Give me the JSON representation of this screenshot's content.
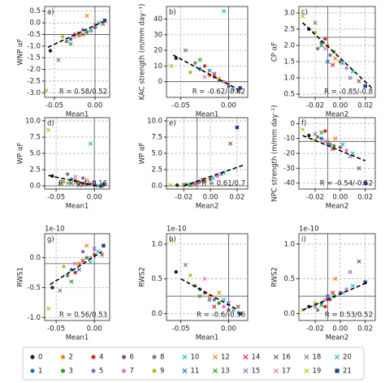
{
  "chart_data": [
    {
      "type": "scatter",
      "label": "a)",
      "xlabel": "Mean1",
      "ylabel": "WNP αF",
      "annotation": "R = 0.58/0.52",
      "grid": true,
      "xlim": [
        -0.062,
        0.018
      ],
      "xticks": [
        -0.05,
        {
          "value": 0,
          "label": "0.00"
        }
      ],
      "ylim": [
        -3.2,
        0.7
      ],
      "yticks": [
        0.5,
        {
          "value": 0,
          "label": "0.0"
        },
        -0.5,
        {
          "value": -1,
          "label": "-1.0"
        },
        -1.5,
        {
          "value": -2,
          "label": "-2.0"
        },
        -2.5,
        {
          "value": -3,
          "label": "-3.0"
        }
      ],
      "ref_x": 0,
      "ref_y": -0.5,
      "fit": {
        "x": [
          -0.058,
          0.01
        ],
        "y": [
          -1.05,
          0.05
        ]
      },
      "x": [
        -0.055,
        -0.03,
        -0.02,
        -0.01,
        -0.025,
        -0.015,
        0.0,
        -0.005,
        -0.035,
        -0.04,
        0.005,
        -0.02,
        -0.01,
        -0.03,
        -0.015,
        0.0,
        0.01,
        -0.025,
        -0.045,
        -0.06,
        -0.005,
        0.012
      ],
      "y": [
        -1.2,
        -0.7,
        -0.55,
        -0.4,
        -0.5,
        -0.3,
        -0.2,
        -0.35,
        -0.8,
        -0.6,
        0.0,
        -0.45,
        0.3,
        -0.9,
        -0.5,
        -0.1,
        -0.05,
        -0.6,
        -1.6,
        -2.9,
        -0.3,
        0.1
      ]
    },
    {
      "type": "scatter",
      "label": "b)",
      "xlabel": "Mean1",
      "ylabel": "KAC strength (m/mm day⁻¹)",
      "annotation": "R = -0.62/-0.62",
      "grid": true,
      "xlim": [
        -0.065,
        0.02
      ],
      "xticks": [
        -0.05,
        {
          "value": 0,
          "label": "0.00"
        }
      ],
      "ylim": [
        -10,
        48
      ],
      "yticks": [
        0,
        10,
        20,
        30,
        40
      ],
      "ref_x": 0,
      "ref_y": 0,
      "fit": {
        "x": [
          -0.058,
          0.01
        ],
        "y": [
          17,
          -5
        ]
      },
      "x": [
        -0.055,
        -0.03,
        -0.02,
        -0.01,
        -0.025,
        -0.015,
        0.0,
        -0.005,
        -0.035,
        -0.04,
        0.005,
        -0.02,
        -0.01,
        -0.03,
        -0.015,
        0.0,
        0.01,
        -0.025,
        -0.045,
        -0.06,
        -0.005,
        0.012
      ],
      "y": [
        15,
        8,
        4,
        1,
        10,
        3,
        -3,
        0,
        12,
        6,
        -5,
        7,
        2,
        14,
        5,
        -2,
        -6,
        3,
        20,
        10,
        45,
        -4
      ]
    },
    {
      "type": "scatter",
      "label": "c)",
      "xlabel": "Mean2",
      "ylabel": "CP αF",
      "annotation": "R = -0.85/-0.8",
      "grid": true,
      "xlim": [
        -0.033,
        0.028
      ],
      "xticks": [
        -0.02,
        {
          "value": 0,
          "label": "0.00"
        },
        0.02
      ],
      "ylim": [
        0.4,
        3.2
      ],
      "yticks": [
        0.5,
        {
          "value": 1,
          "label": "1.0"
        },
        1.5,
        {
          "value": 2,
          "label": "2.0"
        },
        2.5,
        {
          "value": 3,
          "label": "3.0"
        }
      ],
      "ref_x": -0.01,
      "ref_y": 2.25,
      "fit": {
        "x": [
          -0.03,
          0.025
        ],
        "y": [
          2.7,
          0.7
        ]
      },
      "x": [
        -0.025,
        -0.015,
        -0.01,
        -0.005,
        -0.012,
        -0.008,
        0.0,
        0.005,
        -0.018,
        -0.02,
        0.01,
        -0.01,
        -0.004,
        -0.015,
        -0.006,
        0.008,
        0.015,
        -0.012,
        -0.02,
        -0.03,
        0.002,
        0.02
      ],
      "y": [
        2.5,
        2.1,
        2.0,
        1.8,
        2.2,
        1.7,
        1.5,
        1.3,
        1.9,
        2.4,
        1.2,
        1.5,
        1.6,
        2.0,
        1.4,
        1.0,
        0.9,
        1.9,
        2.7,
        2.9,
        1.45,
        0.75
      ]
    },
    {
      "type": "scatter",
      "label": "d)",
      "xlabel": "Mean1",
      "ylabel": "WP αF",
      "annotation": "R = -0.4/-0.16",
      "grid": true,
      "xlim": [
        -0.065,
        0.02
      ],
      "xticks": [
        -0.05,
        {
          "value": 0,
          "label": "0.00"
        }
      ],
      "ylim": [
        -0.5,
        10.5
      ],
      "yticks": [
        {
          "value": 0,
          "label": "0.0"
        },
        2.5,
        {
          "value": 5,
          "label": "5.0"
        },
        7.5,
        {
          "value": 10,
          "label": "10.0"
        }
      ],
      "ref_x": 0,
      "ref_y": 0,
      "fit": {
        "x": [
          -0.06,
          0.01
        ],
        "y": [
          1.6,
          -0.2
        ]
      },
      "x": [
        -0.055,
        -0.03,
        -0.02,
        -0.01,
        -0.025,
        -0.015,
        0.0,
        -0.005,
        -0.035,
        -0.04,
        0.005,
        -0.02,
        -0.01,
        -0.03,
        -0.015,
        0.0,
        0.01,
        -0.025,
        -0.045,
        -0.06,
        -0.005,
        0.012
      ],
      "y": [
        1.5,
        1.0,
        0.5,
        0.2,
        0.8,
        1.2,
        0.1,
        0.3,
        1.8,
        0.6,
        0.0,
        0.1,
        0.9,
        0.4,
        0.2,
        0.5,
        0.0,
        1.4,
        0.3,
        8.6,
        6.5,
        0.2
      ]
    },
    {
      "type": "scatter",
      "label": "e)",
      "xlabel": "Mean2",
      "ylabel": "WP αF",
      "annotation": "R = 0.61/0.7",
      "grid": true,
      "xlim": [
        -0.033,
        0.028
      ],
      "xticks": [
        -0.02,
        {
          "value": 0,
          "label": "0.00"
        },
        0.02
      ],
      "ylim": [
        -0.5,
        10.5
      ],
      "yticks": [
        {
          "value": 0,
          "label": "0.0"
        },
        2.5,
        {
          "value": 5,
          "label": "5.0"
        },
        7.5,
        {
          "value": 10,
          "label": "10.0"
        }
      ],
      "ref_x": -0.01,
      "ref_y": 0,
      "fit": {
        "x": [
          -0.02,
          0.025
        ],
        "y": [
          0,
          3.2
        ]
      },
      "x": [
        -0.025,
        -0.015,
        -0.01,
        -0.005,
        -0.012,
        -0.008,
        0.0,
        0.005,
        -0.018,
        -0.02,
        0.01,
        -0.01,
        -0.004,
        -0.015,
        -0.006,
        0.008,
        0.015,
        -0.012,
        -0.02,
        -0.03,
        0.002,
        0.02
      ],
      "y": [
        0.1,
        0.2,
        0.4,
        0.8,
        0.3,
        0.6,
        1.0,
        1.5,
        0.2,
        0.0,
        2.0,
        0.5,
        0.7,
        0.1,
        0.9,
        1.8,
        6.5,
        0.3,
        0.2,
        0.1,
        1.2,
        9.0
      ]
    },
    {
      "type": "scatter",
      "label": "f)",
      "xlabel": "Mean2",
      "ylabel": "NPC strength (m/mm day⁻¹)",
      "annotation": "R = -0.54/-0.52",
      "grid": true,
      "xlim": [
        -0.033,
        0.028
      ],
      "xticks": [
        -0.02,
        {
          "value": 0,
          "label": "0.00"
        },
        0.02
      ],
      "ylim": [
        -44,
        4
      ],
      "yticks": [
        0,
        -10,
        -20,
        -30,
        -40
      ],
      "ref_x": -0.01,
      "ref_y": -12,
      "fit": {
        "x": [
          -0.03,
          0.02
        ],
        "y": [
          -8,
          -25
        ]
      },
      "x": [
        -0.025,
        -0.015,
        -0.01,
        -0.005,
        -0.012,
        -0.008,
        0.0,
        0.005,
        -0.018,
        -0.02,
        0.01,
        -0.01,
        -0.004,
        -0.015,
        -0.006,
        0.008,
        0.015,
        -0.012,
        -0.02,
        -0.03,
        0.002,
        0.02
      ],
      "y": [
        -8,
        -10,
        -12,
        -15,
        -5,
        -14,
        -16,
        -18,
        -9,
        -11,
        -20,
        -13,
        -10,
        -6,
        -17,
        -22,
        -30,
        -12,
        -7,
        -4,
        -14,
        -40
      ]
    },
    {
      "type": "scatter",
      "label": "g)",
      "xlabel": "Mean1",
      "ylabel": "RWS1",
      "annotation": "R = 0.56/0.53",
      "offset_label": "1e-10",
      "grid": true,
      "xlim": [
        -0.065,
        0.02
      ],
      "xticks": [
        -0.05,
        {
          "value": 0,
          "label": "0.00"
        }
      ],
      "ylim": [
        -1.05,
        0.4
      ],
      "yticks": [
        {
          "value": -1,
          "label": "-1.0"
        },
        -0.5,
        {
          "value": 0,
          "label": "0.0"
        }
      ],
      "ref_x": 0,
      "ref_y": -0.1,
      "fit": {
        "x": [
          -0.058,
          0.01
        ],
        "y": [
          -0.45,
          0.1
        ]
      },
      "x": [
        -0.055,
        -0.03,
        -0.02,
        -0.01,
        -0.025,
        -0.015,
        0.0,
        -0.005,
        -0.035,
        -0.04,
        0.005,
        -0.02,
        -0.01,
        -0.03,
        -0.015,
        0.0,
        0.01,
        -0.025,
        -0.045,
        -0.06,
        -0.005,
        0.012
      ],
      "y": [
        -0.5,
        -0.2,
        -0.1,
        0.0,
        -0.25,
        0.1,
        0.05,
        0.0,
        -0.3,
        -0.15,
        0.1,
        -0.2,
        0.2,
        -0.4,
        -0.05,
        0.15,
        0.05,
        -0.1,
        -0.55,
        -0.85,
        -0.08,
        0.2
      ]
    },
    {
      "type": "scatter",
      "label": "h)",
      "xlabel": "Mean1",
      "ylabel": "RWS2",
      "annotation": "R = -0.6/-0.56",
      "offset_label": "1e-10",
      "grid": true,
      "xlim": [
        -0.065,
        0.02
      ],
      "xticks": [
        -0.05,
        {
          "value": 0,
          "label": "0.00"
        }
      ],
      "ylim": [
        -0.1,
        1.15
      ],
      "yticks": [
        {
          "value": 0,
          "label": "0.0"
        },
        0.5,
        {
          "value": 1,
          "label": "1.0"
        }
      ],
      "ref_x": 0,
      "ref_y": 0.25,
      "fit": {
        "x": [
          -0.05,
          0.01
        ],
        "y": [
          0.5,
          0.05
        ]
      },
      "x": [
        -0.055,
        -0.03,
        -0.02,
        -0.01,
        -0.025,
        -0.015,
        0.0,
        -0.005,
        -0.035,
        -0.04,
        0.005,
        -0.02,
        -0.01,
        -0.03,
        -0.015,
        0.0,
        0.01,
        -0.025,
        -0.045,
        -0.06,
        -0.005,
        0.012
      ],
      "y": [
        0.6,
        0.35,
        0.25,
        0.15,
        0.3,
        0.2,
        0.05,
        0.1,
        0.4,
        0.55,
        0.05,
        0.2,
        0.3,
        0.25,
        0.1,
        0.15,
        0.1,
        0.5,
        0.7,
        1.05,
        0.2,
        0.0
      ]
    },
    {
      "type": "scatter",
      "label": "i)",
      "xlabel": "Mean2",
      "ylabel": "RWS2",
      "annotation": "R = 0.53/0.52",
      "offset_label": "1e-10",
      "grid": true,
      "xlim": [
        -0.033,
        0.028
      ],
      "xticks": [
        -0.02,
        {
          "value": 0,
          "label": "0.00"
        },
        0.02
      ],
      "ylim": [
        -0.1,
        1.15
      ],
      "yticks": [
        {
          "value": 0,
          "label": "0.0"
        },
        0.5,
        {
          "value": 1,
          "label": "1.0"
        }
      ],
      "ref_x": -0.01,
      "ref_y": 0.25,
      "fit": {
        "x": [
          -0.03,
          0.022
        ],
        "y": [
          0.05,
          0.45
        ]
      },
      "x": [
        -0.025,
        -0.015,
        -0.01,
        -0.005,
        -0.012,
        -0.008,
        0.0,
        0.005,
        -0.018,
        -0.02,
        0.01,
        -0.01,
        -0.004,
        -0.015,
        -0.006,
        0.008,
        0.015,
        -0.012,
        -0.02,
        -0.03,
        0.002,
        0.02
      ],
      "y": [
        0.1,
        0.15,
        0.2,
        0.25,
        0.1,
        0.2,
        0.3,
        0.35,
        0.05,
        0.15,
        0.4,
        0.25,
        0.5,
        0.12,
        0.3,
        0.6,
        0.75,
        0.2,
        0.1,
        0.05,
        0.3,
        0.45
      ]
    }
  ],
  "legend": {
    "entries": [
      {
        "name": "0",
        "color": "#222222",
        "marker": "o"
      },
      {
        "name": "1",
        "color": "#1f77b4",
        "marker": "o"
      },
      {
        "name": "2",
        "color": "#ff7f0e",
        "marker": "o"
      },
      {
        "name": "3",
        "color": "#2ca02c",
        "marker": "o"
      },
      {
        "name": "4",
        "color": "#d62728",
        "marker": "o"
      },
      {
        "name": "5",
        "color": "#9467bd",
        "marker": "o"
      },
      {
        "name": "6",
        "color": "#8c564b",
        "marker": "o"
      },
      {
        "name": "7",
        "color": "#e377c2",
        "marker": "o"
      },
      {
        "name": "8",
        "color": "#7f7f7f",
        "marker": "o"
      },
      {
        "name": "9",
        "color": "#bcbd22",
        "marker": "o"
      },
      {
        "name": "10",
        "color": "#17becf",
        "marker": "x"
      },
      {
        "name": "11",
        "color": "#1f77b4",
        "marker": "x"
      },
      {
        "name": "12",
        "color": "#ff7f0e",
        "marker": "x"
      },
      {
        "name": "13",
        "color": "#2ca02c",
        "marker": "x"
      },
      {
        "name": "14",
        "color": "#d62728",
        "marker": "x"
      },
      {
        "name": "15",
        "color": "#9467bd",
        "marker": "x"
      },
      {
        "name": "16",
        "color": "#8c564b",
        "marker": "x"
      },
      {
        "name": "17",
        "color": "#e377c2",
        "marker": "x"
      },
      {
        "name": "18",
        "color": "#7f7f7f",
        "marker": "x"
      },
      {
        "name": "19",
        "color": "#bcbd22",
        "marker": "x"
      },
      {
        "name": "20",
        "color": "#17becf",
        "marker": "x"
      },
      {
        "name": "21",
        "color": "#1f3f8f",
        "marker": "s"
      }
    ]
  }
}
